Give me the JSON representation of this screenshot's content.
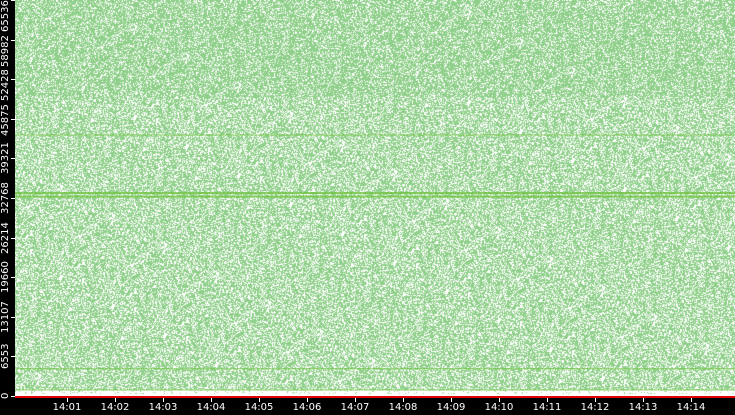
{
  "chart_data": {
    "type": "scatter",
    "title": "",
    "xlabel": "",
    "ylabel": "",
    "x_ticks": [
      "14:01",
      "14:02",
      "14:03",
      "14:04",
      "14:05",
      "14:06",
      "14:07",
      "14:08",
      "14:09",
      "14:10",
      "14:11",
      "14:12",
      "14:13",
      "14:14"
    ],
    "y_ticks": [
      "0",
      "6553",
      "13107",
      "19660",
      "26214",
      "32768",
      "39321",
      "45875",
      "52428",
      "58982",
      "65536"
    ],
    "ylim": [
      0,
      65536
    ],
    "xlim": [
      "14:00",
      "14:15"
    ],
    "grid": false,
    "point_color": "#8fd08a",
    "dense_line_color": "#6cc23a",
    "baseline_color": "#e00000",
    "density_bands": [
      {
        "y_from": 49600,
        "y_to": 65536,
        "density": 0.72
      },
      {
        "y_from": 0,
        "y_to": 49600,
        "density": 0.62
      }
    ],
    "dense_lines": [
      43200,
      33600,
      33000,
      4500,
      1000
    ]
  }
}
